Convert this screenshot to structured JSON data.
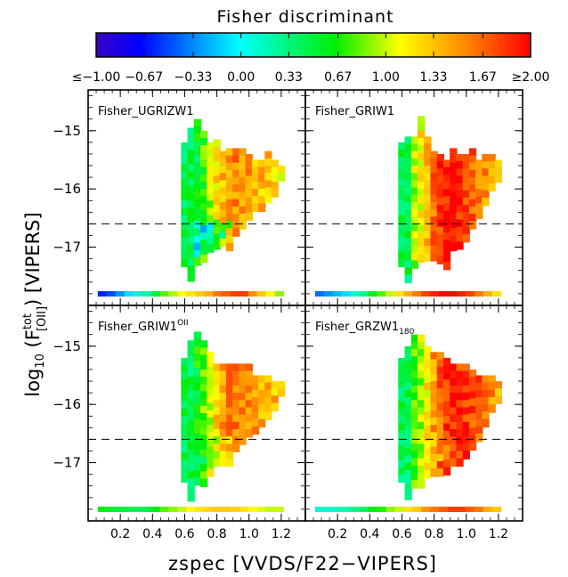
{
  "colorbar": {
    "title": "Fisher discriminant",
    "min": -1.0,
    "max": 2.0,
    "tick_labels": [
      "≤−1.00",
      "−0.67",
      "−0.33",
      "0.00",
      "0.33",
      "0.67",
      "1.00",
      "1.33",
      "1.67",
      "≥2.00"
    ],
    "tick_values": [
      -1.0,
      -0.67,
      -0.33,
      0.0,
      0.33,
      0.67,
      1.0,
      1.33,
      1.67,
      2.0
    ]
  },
  "axes": {
    "xlabel": "zspec [VVDS/F22−VIPERS]",
    "ylabel_prefix": "log",
    "ylabel_sub": "10",
    "ylabel_mid": " (F",
    "ylabel_sup": "tot",
    "ylabel_sub2": "[OII]",
    "ylabel_suffix": ") [VIPERS]",
    "xlim": [
      0.0,
      1.35
    ],
    "ylim": [
      -18.0,
      -14.3
    ],
    "xticks": [
      0.2,
      0.4,
      0.6,
      0.8,
      1.0,
      1.2
    ],
    "xtick_labels": [
      "0.2",
      "0.4",
      "0.6",
      "0.8",
      "1.0",
      "1.2"
    ],
    "yticks": [
      -15,
      -16,
      -17
    ],
    "ytick_labels": [
      "−15",
      "−16",
      "−17"
    ],
    "threshold_y": -16.6
  },
  "chart_data": [
    {
      "type": "heatmap",
      "panel_name": "Fisher_UGRIZW1",
      "label_main": "Fisher_UGRIZW1",
      "label_sup": "",
      "label_sub": "",
      "summary_bins": [
        -0.6,
        -0.5,
        -0.3,
        -0.1,
        0.1,
        0.2,
        0.5,
        0.8,
        0.95,
        1.1,
        1.2,
        1.3,
        1.4,
        1.6,
        1.7,
        1.8,
        1.8,
        1.5,
        1.3,
        1.1,
        0.9
      ],
      "columns": [
        {
          "z": 0.6,
          "ymin": -17.3,
          "ymax": -15.2,
          "v": 0.62
        },
        {
          "z": 0.64,
          "ymin": -17.5,
          "ymax": -14.95,
          "v": 0.6
        },
        {
          "z": 0.68,
          "ymin": -17.2,
          "ymax": -14.8,
          "v": 0.55
        },
        {
          "z": 0.72,
          "ymin": -17.2,
          "ymax": -15.0,
          "v": 0.72
        },
        {
          "z": 0.76,
          "ymin": -17.0,
          "ymax": -15.2,
          "v": 0.95
        },
        {
          "z": 0.8,
          "ymin": -17.0,
          "ymax": -15.15,
          "v": 1.2
        },
        {
          "z": 0.84,
          "ymin": -16.85,
          "ymax": -15.35,
          "v": 1.35
        },
        {
          "z": 0.88,
          "ymin": -17.0,
          "ymax": -15.3,
          "v": 1.5
        },
        {
          "z": 0.92,
          "ymin": -16.75,
          "ymax": -15.3,
          "v": 1.55
        },
        {
          "z": 0.96,
          "ymin": -16.65,
          "ymax": -15.3,
          "v": 1.5
        },
        {
          "z": 1.0,
          "ymin": -16.5,
          "ymax": -15.4,
          "v": 1.45
        },
        {
          "z": 1.04,
          "ymin": -16.35,
          "ymax": -15.5,
          "v": 1.4
        },
        {
          "z": 1.08,
          "ymin": -16.3,
          "ymax": -15.5,
          "v": 1.35
        },
        {
          "z": 1.12,
          "ymin": -16.15,
          "ymax": -15.35,
          "v": 1.3
        },
        {
          "z": 1.16,
          "ymin": -16.0,
          "ymax": -15.5,
          "v": 1.25
        },
        {
          "z": 1.2,
          "ymin": -15.8,
          "ymax": -15.6,
          "v": 1.2
        }
      ],
      "low_band": [
        -16.5,
        -17.1
      ],
      "low_bias": -1.0
    },
    {
      "type": "heatmap",
      "panel_name": "Fisher_GRIW1",
      "label_main": "Fisher_GRIW1",
      "label_sup": "",
      "label_sub": "",
      "summary_bins": [
        -0.4,
        -0.3,
        -0.2,
        -0.1,
        0.1,
        0.3,
        0.55,
        0.8,
        1.0,
        1.2,
        1.4,
        1.6,
        1.8,
        1.9,
        2.0,
        2.0,
        1.9,
        1.8,
        1.6,
        1.4,
        1.2
      ],
      "columns": [
        {
          "z": 0.6,
          "ymin": -17.2,
          "ymax": -15.2,
          "v": 0.62
        },
        {
          "z": 0.64,
          "ymin": -17.5,
          "ymax": -15.1,
          "v": 0.75
        },
        {
          "z": 0.68,
          "ymin": -17.3,
          "ymax": -15.1,
          "v": 0.95
        },
        {
          "z": 0.72,
          "ymin": -17.2,
          "ymax": -14.75,
          "v": 1.15
        },
        {
          "z": 0.76,
          "ymin": -17.1,
          "ymax": -15.1,
          "v": 1.4
        },
        {
          "z": 0.8,
          "ymin": -17.2,
          "ymax": -15.35,
          "v": 1.65
        },
        {
          "z": 0.84,
          "ymin": -17.25,
          "ymax": -15.4,
          "v": 1.85
        },
        {
          "z": 0.88,
          "ymin": -17.3,
          "ymax": -15.5,
          "v": 1.95
        },
        {
          "z": 0.92,
          "ymin": -17.0,
          "ymax": -15.3,
          "v": 1.95
        },
        {
          "z": 0.96,
          "ymin": -17.0,
          "ymax": -15.4,
          "v": 1.9
        },
        {
          "z": 1.0,
          "ymin": -16.8,
          "ymax": -15.4,
          "v": 1.8
        },
        {
          "z": 1.04,
          "ymin": -16.6,
          "ymax": -15.3,
          "v": 1.7
        },
        {
          "z": 1.08,
          "ymin": -16.4,
          "ymax": -15.5,
          "v": 1.6
        },
        {
          "z": 1.12,
          "ymin": -16.2,
          "ymax": -15.4,
          "v": 1.5
        },
        {
          "z": 1.16,
          "ymin": -15.9,
          "ymax": -15.4,
          "v": 1.4
        },
        {
          "z": 1.2,
          "ymin": -15.8,
          "ymax": -15.5,
          "v": 1.3
        }
      ],
      "low_band": [
        -16.6,
        -16.9
      ],
      "low_bias": 0.0
    },
    {
      "type": "heatmap",
      "panel_name": "Fisher_GRIW1OII",
      "label_main": "Fisher_GRIW1",
      "label_sup": "OII",
      "label_sub": "",
      "summary_bins": [
        0.6,
        0.55,
        0.5,
        0.45,
        0.4,
        0.45,
        0.6,
        0.8,
        0.9,
        1.0,
        1.1,
        1.2,
        1.25,
        1.3,
        1.3,
        1.25,
        1.2,
        1.1,
        1.05,
        1.0,
        1.0
      ],
      "columns": [
        {
          "z": 0.6,
          "ymin": -17.3,
          "ymax": -15.2,
          "v": 0.55
        },
        {
          "z": 0.64,
          "ymin": -17.6,
          "ymax": -14.9,
          "v": 0.55
        },
        {
          "z": 0.68,
          "ymin": -17.3,
          "ymax": -14.75,
          "v": 0.6
        },
        {
          "z": 0.72,
          "ymin": -17.3,
          "ymax": -14.9,
          "v": 0.8
        },
        {
          "z": 0.76,
          "ymin": -17.1,
          "ymax": -15.1,
          "v": 1.0
        },
        {
          "z": 0.8,
          "ymin": -17.0,
          "ymax": -15.3,
          "v": 1.25
        },
        {
          "z": 0.84,
          "ymin": -16.95,
          "ymax": -15.3,
          "v": 1.45
        },
        {
          "z": 0.88,
          "ymin": -17.0,
          "ymax": -15.3,
          "v": 1.55
        },
        {
          "z": 0.92,
          "ymin": -16.75,
          "ymax": -15.3,
          "v": 1.6
        },
        {
          "z": 0.96,
          "ymin": -16.65,
          "ymax": -15.3,
          "v": 1.6
        },
        {
          "z": 1.0,
          "ymin": -16.5,
          "ymax": -15.3,
          "v": 1.55
        },
        {
          "z": 1.04,
          "ymin": -16.4,
          "ymax": -15.5,
          "v": 1.5
        },
        {
          "z": 1.08,
          "ymin": -16.3,
          "ymax": -15.5,
          "v": 1.45
        },
        {
          "z": 1.12,
          "ymin": -16.2,
          "ymax": -15.5,
          "v": 1.4
        },
        {
          "z": 1.16,
          "ymin": -16.0,
          "ymax": -15.6,
          "v": 1.35
        },
        {
          "z": 1.2,
          "ymin": -15.8,
          "ymax": -15.6,
          "v": 1.3
        }
      ],
      "low_band": [
        -16.5,
        -17.1
      ],
      "low_bias": -0.45
    },
    {
      "type": "heatmap",
      "panel_name": "Fisher_GRZW1_180",
      "label_main": "Fisher_GRZW1",
      "label_sup": "",
      "label_sub": "180",
      "summary_bins": [
        0.1,
        0.1,
        0.15,
        0.2,
        0.3,
        0.4,
        0.6,
        0.7,
        0.9,
        1.0,
        1.2,
        1.3,
        1.5,
        1.6,
        1.7,
        1.8,
        1.8,
        1.7,
        1.6,
        1.4,
        1.3
      ],
      "columns": [
        {
          "z": 0.6,
          "ymin": -17.3,
          "ymax": -15.2,
          "v": 0.62
        },
        {
          "z": 0.64,
          "ymin": -17.6,
          "ymax": -15.0,
          "v": 0.62
        },
        {
          "z": 0.68,
          "ymin": -17.4,
          "ymax": -14.8,
          "v": 0.75
        },
        {
          "z": 0.72,
          "ymin": -17.3,
          "ymax": -14.8,
          "v": 0.95
        },
        {
          "z": 0.76,
          "ymin": -17.2,
          "ymax": -15.0,
          "v": 1.2
        },
        {
          "z": 0.8,
          "ymin": -17.2,
          "ymax": -15.1,
          "v": 1.45
        },
        {
          "z": 0.84,
          "ymin": -17.2,
          "ymax": -15.1,
          "v": 1.65
        },
        {
          "z": 0.88,
          "ymin": -17.1,
          "ymax": -15.2,
          "v": 1.8
        },
        {
          "z": 0.92,
          "ymin": -17.0,
          "ymax": -15.3,
          "v": 1.85
        },
        {
          "z": 0.96,
          "ymin": -16.95,
          "ymax": -15.3,
          "v": 1.85
        },
        {
          "z": 1.0,
          "ymin": -16.8,
          "ymax": -15.3,
          "v": 1.8
        },
        {
          "z": 1.04,
          "ymin": -16.7,
          "ymax": -15.4,
          "v": 1.75
        },
        {
          "z": 1.08,
          "ymin": -16.5,
          "ymax": -15.5,
          "v": 1.7
        },
        {
          "z": 1.12,
          "ymin": -16.3,
          "ymax": -15.5,
          "v": 1.6
        },
        {
          "z": 1.16,
          "ymin": -16.0,
          "ymax": -15.5,
          "v": 1.5
        },
        {
          "z": 1.2,
          "ymin": -15.9,
          "ymax": -15.6,
          "v": 1.4
        }
      ],
      "low_band": [
        -16.6,
        -16.9
      ],
      "low_bias": -0.2
    }
  ]
}
